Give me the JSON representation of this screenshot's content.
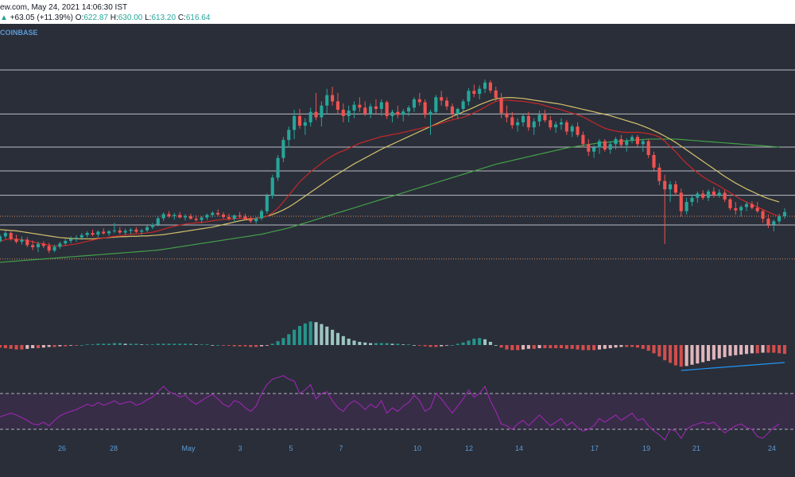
{
  "header": {
    "source_line": "ew.com, May 24, 2021 14:06:30 IST",
    "change": "+63.05 (+11.39%)",
    "o_label": "O:",
    "o_value": "622.87",
    "h_label": "H:",
    "h_value": "630.00",
    "l_label": "L:",
    "l_value": "613.20",
    "c_label": "C:",
    "c_value": "616.64",
    "up_arrow": "▲",
    "exchange": "COINBASE"
  },
  "colors": {
    "background": "#2a2e39",
    "bull": "#26a69a",
    "bear": "#ef5350",
    "ma_red": "#c62828",
    "ma_yellow": "#d4c26a",
    "ma_green": "#43a047",
    "rsi": "#9c27b0",
    "trendline": "#2196f3",
    "hline": "#d1d4dc",
    "dotted": "#d18a5c"
  },
  "chart_data": {
    "type": "candlestick",
    "x_ticks": [
      "26",
      "28",
      "May",
      "3",
      "5",
      "7",
      "10",
      "12",
      "14",
      "17",
      "19",
      "21",
      "24"
    ],
    "candles": [
      [
        546,
        563,
        543,
        558
      ],
      [
        558,
        572,
        552,
        566
      ],
      [
        566,
        570,
        548,
        552
      ],
      [
        552,
        562,
        541,
        545
      ],
      [
        545,
        558,
        538,
        550
      ],
      [
        550,
        556,
        532,
        537
      ],
      [
        537,
        548,
        525,
        532
      ],
      [
        532,
        545,
        520,
        540
      ],
      [
        540,
        546,
        530,
        535
      ],
      [
        535,
        542,
        518,
        524
      ],
      [
        524,
        538,
        520,
        533
      ],
      [
        533,
        545,
        528,
        541
      ],
      [
        541,
        552,
        536,
        547
      ],
      [
        547,
        558,
        541,
        552
      ],
      [
        552,
        560,
        545,
        555
      ],
      [
        555,
        566,
        549,
        561
      ],
      [
        561,
        570,
        555,
        566
      ],
      [
        566,
        574,
        558,
        562
      ],
      [
        562,
        572,
        556,
        569
      ],
      [
        569,
        577,
        562,
        565
      ],
      [
        565,
        573,
        559,
        570
      ],
      [
        570,
        590,
        566,
        572
      ],
      [
        572,
        580,
        563,
        567
      ],
      [
        567,
        576,
        560,
        571
      ],
      [
        571,
        578,
        564,
        574
      ],
      [
        574,
        580,
        566,
        569
      ],
      [
        569,
        576,
        562,
        572
      ],
      [
        572,
        584,
        568,
        580
      ],
      [
        580,
        590,
        575,
        586
      ],
      [
        586,
        605,
        582,
        601
      ],
      [
        601,
        615,
        595,
        611
      ],
      [
        611,
        618,
        602,
        606
      ],
      [
        606,
        614,
        598,
        609
      ],
      [
        609,
        616,
        601,
        603
      ],
      [
        603,
        611,
        596,
        606
      ],
      [
        606,
        612,
        598,
        600
      ],
      [
        600,
        608,
        593,
        597
      ],
      [
        597,
        606,
        590,
        603
      ],
      [
        603,
        612,
        597,
        609
      ],
      [
        609,
        618,
        603,
        614
      ],
      [
        614,
        622,
        606,
        610
      ],
      [
        610,
        616,
        600,
        604
      ],
      [
        604,
        612,
        596,
        600
      ],
      [
        600,
        610,
        592,
        608
      ],
      [
        608,
        616,
        602,
        605
      ],
      [
        605,
        612,
        596,
        598
      ],
      [
        598,
        606,
        590,
        594
      ],
      [
        594,
        604,
        588,
        601
      ],
      [
        601,
        622,
        597,
        618
      ],
      [
        618,
        660,
        612,
        655
      ],
      [
        655,
        705,
        648,
        698
      ],
      [
        698,
        752,
        690,
        745
      ],
      [
        745,
        795,
        735,
        788
      ],
      [
        788,
        820,
        770,
        812
      ],
      [
        812,
        860,
        790,
        845
      ],
      [
        845,
        862,
        815,
        822
      ],
      [
        822,
        840,
        800,
        830
      ],
      [
        830,
        865,
        820,
        855
      ],
      [
        855,
        900,
        835,
        842
      ],
      [
        842,
        880,
        820,
        870
      ],
      [
        870,
        910,
        850,
        895
      ],
      [
        895,
        915,
        870,
        880
      ],
      [
        880,
        900,
        850,
        860
      ],
      [
        860,
        875,
        830,
        845
      ],
      [
        845,
        870,
        830,
        858
      ],
      [
        858,
        880,
        840,
        872
      ],
      [
        872,
        890,
        855,
        865
      ],
      [
        865,
        880,
        845,
        850
      ],
      [
        850,
        875,
        840,
        868
      ],
      [
        868,
        885,
        850,
        862
      ],
      [
        862,
        885,
        845,
        878
      ],
      [
        878,
        882,
        838,
        845
      ],
      [
        845,
        860,
        830,
        855
      ],
      [
        855,
        870,
        840,
        848
      ],
      [
        848,
        862,
        832,
        856
      ],
      [
        856,
        870,
        845,
        865
      ],
      [
        865,
        890,
        855,
        885
      ],
      [
        885,
        900,
        870,
        878
      ],
      [
        878,
        885,
        840,
        848
      ],
      [
        848,
        860,
        800,
        855
      ],
      [
        855,
        895,
        850,
        890
      ],
      [
        890,
        905,
        870,
        882
      ],
      [
        882,
        890,
        860,
        868
      ],
      [
        868,
        875,
        840,
        850
      ],
      [
        850,
        865,
        838,
        862
      ],
      [
        862,
        885,
        855,
        880
      ],
      [
        880,
        912,
        870,
        905
      ],
      [
        905,
        920,
        890,
        898
      ],
      [
        898,
        918,
        885,
        910
      ],
      [
        910,
        932,
        900,
        925
      ],
      [
        925,
        930,
        900,
        906
      ],
      [
        906,
        915,
        880,
        888
      ],
      [
        888,
        900,
        840,
        852
      ],
      [
        852,
        870,
        830,
        842
      ],
      [
        842,
        855,
        815,
        823
      ],
      [
        823,
        840,
        808,
        830
      ],
      [
        830,
        850,
        820,
        845
      ],
      [
        845,
        855,
        810,
        818
      ],
      [
        818,
        840,
        800,
        832
      ],
      [
        832,
        858,
        820,
        848
      ],
      [
        848,
        860,
        830,
        835
      ],
      [
        835,
        845,
        812,
        818
      ],
      [
        818,
        832,
        805,
        825
      ],
      [
        825,
        840,
        812,
        830
      ],
      [
        830,
        835,
        800,
        808
      ],
      [
        808,
        825,
        795,
        820
      ],
      [
        820,
        830,
        795,
        800
      ],
      [
        800,
        808,
        770,
        778
      ],
      [
        778,
        790,
        750,
        760
      ],
      [
        760,
        775,
        745,
        770
      ],
      [
        770,
        790,
        755,
        785
      ],
      [
        785,
        790,
        760,
        765
      ],
      [
        765,
        785,
        755,
        778
      ],
      [
        778,
        795,
        765,
        790
      ],
      [
        790,
        800,
        772,
        776
      ],
      [
        776,
        792,
        760,
        786
      ],
      [
        786,
        800,
        780,
        795
      ],
      [
        795,
        800,
        772,
        778
      ],
      [
        778,
        790,
        760,
        785
      ],
      [
        785,
        790,
        745,
        752
      ],
      [
        752,
        760,
        715,
        722
      ],
      [
        722,
        732,
        680,
        690
      ],
      [
        690,
        705,
        540,
        670
      ],
      [
        670,
        690,
        640,
        682
      ],
      [
        682,
        690,
        655,
        662
      ],
      [
        662,
        672,
        605,
        618
      ],
      [
        618,
        650,
        610,
        640
      ],
      [
        640,
        658,
        630,
        650
      ],
      [
        650,
        665,
        638,
        660
      ],
      [
        660,
        668,
        645,
        650
      ],
      [
        650,
        670,
        642,
        665
      ],
      [
        665,
        675,
        650,
        656
      ],
      [
        656,
        670,
        650,
        662
      ],
      [
        662,
        668,
        640,
        646
      ],
      [
        646,
        650,
        620,
        625
      ],
      [
        625,
        640,
        610,
        620
      ],
      [
        620,
        632,
        605,
        628
      ],
      [
        628,
        640,
        618,
        635
      ],
      [
        635,
        642,
        622,
        626
      ],
      [
        626,
        640,
        614,
        618
      ],
      [
        618,
        622,
        590,
        600
      ],
      [
        600,
        610,
        578,
        586
      ],
      [
        586,
        598,
        570,
        594
      ],
      [
        594,
        612,
        588,
        606
      ],
      [
        606,
        625,
        600,
        616
      ]
    ],
    "ma_red": [
      546,
      550,
      552,
      551,
      550,
      548,
      545,
      542,
      540,
      537,
      535,
      535,
      536,
      538,
      540,
      543,
      546,
      549,
      552,
      554,
      556,
      558,
      559,
      561,
      563,
      564,
      565,
      566,
      568,
      571,
      575,
      579,
      582,
      585,
      587,
      589,
      590,
      591,
      593,
      595,
      597,
      598,
      599,
      600,
      601,
      601,
      601,
      601,
      602,
      606,
      614,
      625,
      640,
      656,
      672,
      688,
      700,
      712,
      722,
      732,
      742,
      750,
      757,
      762,
      768,
      774,
      780,
      784,
      788,
      792,
      796,
      798,
      801,
      803,
      806,
      809,
      812,
      815,
      818,
      820,
      824,
      828,
      832,
      836,
      839,
      842,
      847,
      853,
      859,
      866,
      874,
      880,
      883,
      883,
      882,
      881,
      880,
      878,
      876,
      874,
      870,
      866,
      863,
      860,
      856,
      852,
      848,
      843,
      836,
      829,
      822,
      816,
      812,
      809,
      807,
      806,
      806,
      806,
      805,
      803,
      800,
      795,
      785,
      772,
      760,
      745,
      732,
      720,
      710,
      700,
      692,
      685,
      678,
      670,
      662,
      654,
      646,
      640,
      634,
      628,
      622,
      616,
      610,
      606
    ],
    "ma_yellow": [
      574,
      573,
      572,
      571,
      569,
      567,
      565,
      563,
      561,
      559,
      557,
      555,
      554,
      553,
      552,
      552,
      552,
      552,
      553,
      554,
      555,
      556,
      557,
      557,
      558,
      558,
      559,
      559,
      560,
      561,
      562,
      564,
      566,
      568,
      570,
      572,
      574,
      576,
      578,
      580,
      583,
      586,
      589,
      592,
      595,
      597,
      599,
      601,
      603,
      606,
      610,
      615,
      621,
      628,
      636,
      645,
      654,
      663,
      672,
      681,
      690,
      699,
      707,
      715,
      723,
      731,
      738,
      745,
      752,
      759,
      766,
      772,
      778,
      784,
      790,
      796,
      802,
      808,
      814,
      820,
      826,
      832,
      838,
      844,
      849,
      855,
      860,
      866,
      872,
      877,
      882,
      886,
      888,
      889,
      889,
      888,
      887,
      885,
      883,
      881,
      879,
      877,
      875,
      873,
      870,
      867,
      864,
      861,
      858,
      855,
      852,
      849,
      846,
      842,
      838,
      834,
      830,
      826,
      821,
      816,
      810,
      804,
      797,
      790,
      782,
      773,
      764,
      755,
      746,
      737,
      728,
      719,
      710,
      701,
      693,
      685,
      678,
      671,
      665,
      659,
      653,
      648,
      644,
      640
    ],
    "ma_green": [
      496,
      497,
      498,
      499,
      500,
      501,
      502,
      503,
      504,
      505,
      506,
      507,
      508,
      509,
      510,
      511,
      512,
      513,
      514,
      515,
      516,
      517,
      518,
      519,
      520,
      521,
      522,
      523,
      524,
      525,
      527,
      529,
      531,
      533,
      535,
      537,
      539,
      541,
      543,
      545,
      547,
      549,
      551,
      553,
      555,
      557,
      559,
      561,
      563,
      566,
      569,
      572,
      575,
      578,
      582,
      586,
      590,
      594,
      598,
      602,
      606,
      610,
      614,
      618,
      622,
      626,
      630,
      634,
      638,
      642,
      646,
      650,
      654,
      658,
      662,
      666,
      670,
      674,
      678,
      682,
      686,
      690,
      694,
      698,
      702,
      706,
      710,
      714,
      718,
      722,
      726,
      730,
      733,
      736,
      739,
      742,
      745,
      748,
      751,
      754,
      757,
      760,
      763,
      766,
      769,
      771,
      773,
      775,
      777,
      779,
      781,
      782,
      783,
      784,
      785,
      786,
      787,
      788,
      789,
      790,
      790,
      790,
      790,
      790,
      790,
      789,
      788,
      787,
      786,
      785,
      784,
      783,
      782,
      781,
      780,
      779,
      778,
      777,
      776,
      775,
      774,
      773,
      772,
      771
    ],
    "hlines": [
      955,
      850,
      771,
      714,
      656,
      585
    ],
    "dotted_levels": [
      606,
      504
    ],
    "y_range": [
      420,
      1065
    ],
    "macd_histogram": [
      -4,
      -5,
      -6,
      -7,
      -7,
      -6,
      -5,
      -5,
      -4,
      -3,
      -3,
      -2,
      -2,
      -1,
      -1,
      0,
      1,
      1,
      2,
      2,
      2,
      3,
      3,
      2,
      2,
      2,
      1,
      1,
      1,
      2,
      2,
      2,
      2,
      2,
      2,
      2,
      1,
      1,
      1,
      0,
      0,
      -1,
      -1,
      -2,
      -2,
      -2,
      -3,
      -3,
      -2,
      -1,
      2,
      6,
      11,
      17,
      24,
      30,
      34,
      37,
      36,
      33,
      29,
      24,
      19,
      14,
      10,
      7,
      5,
      4,
      3,
      3,
      3,
      3,
      2,
      2,
      1,
      1,
      0,
      -1,
      -2,
      -3,
      -3,
      -2,
      -1,
      0,
      2,
      4,
      7,
      10,
      11,
      9,
      5,
      0,
      -4,
      -7,
      -8,
      -8,
      -7,
      -6,
      -6,
      -5,
      -5,
      -5,
      -5,
      -5,
      -6,
      -6,
      -7,
      -8,
      -8,
      -8,
      -7,
      -6,
      -5,
      -4,
      -3,
      -3,
      -3,
      -4,
      -6,
      -9,
      -13,
      -18,
      -24,
      -28,
      -32,
      -34,
      -33,
      -31,
      -29,
      -27,
      -25,
      -23,
      -21,
      -19,
      -17,
      -16,
      -15,
      -14,
      -13,
      -13,
      -12,
      -12,
      -12,
      -13,
      -14
    ],
    "rsi": [
      44,
      46,
      48,
      46,
      43,
      40,
      36,
      35,
      38,
      34,
      40,
      45,
      48,
      50,
      52,
      55,
      58,
      56,
      60,
      57,
      59,
      62,
      58,
      60,
      61,
      57,
      59,
      63,
      66,
      72,
      78,
      72,
      70,
      66,
      68,
      62,
      58,
      62,
      66,
      69,
      64,
      58,
      55,
      62,
      60,
      54,
      50,
      56,
      70,
      80,
      86,
      88,
      90,
      86,
      84,
      70,
      74,
      80,
      64,
      70,
      72,
      62,
      54,
      50,
      58,
      62,
      58,
      52,
      58,
      54,
      62,
      48,
      54,
      50,
      56,
      60,
      68,
      62,
      50,
      54,
      70,
      64,
      56,
      48,
      56,
      64,
      74,
      66,
      70,
      78,
      62,
      50,
      36,
      34,
      30,
      36,
      40,
      34,
      40,
      46,
      40,
      34,
      38,
      42,
      34,
      38,
      32,
      28,
      30,
      34,
      42,
      38,
      42,
      46,
      40,
      44,
      48,
      40,
      42,
      34,
      28,
      24,
      18,
      30,
      28,
      20,
      30,
      34,
      36,
      38,
      36,
      38,
      32,
      26,
      30,
      34,
      36,
      32,
      30,
      22,
      20,
      26,
      32,
      36
    ],
    "rsi_levels": [
      70,
      30
    ]
  }
}
